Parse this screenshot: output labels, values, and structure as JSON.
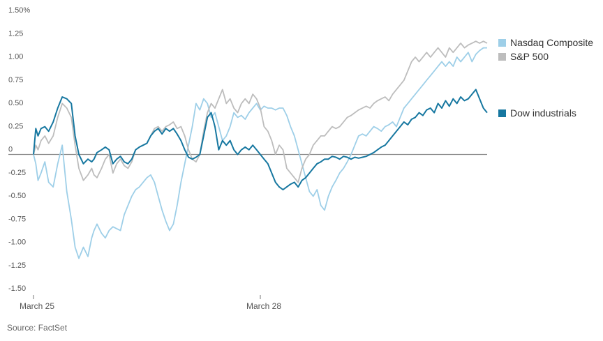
{
  "chart_data": {
    "type": "line",
    "y_tick_labels": [
      "1.50%",
      "1.25",
      "1.00",
      "0.75",
      "0.50",
      "0.25",
      "0",
      "-0.25",
      "-0.50",
      "-0.75",
      "-1.00",
      "-1.25",
      "-1.50"
    ],
    "y_tick_values": [
      1.5,
      1.25,
      1.0,
      0.75,
      0.5,
      0.25,
      0,
      -0.25,
      -0.5,
      -0.75,
      -1.0,
      -1.25,
      -1.5
    ],
    "ylim": [
      -1.5,
      1.5
    ],
    "x_tick_labels": [
      "March 25",
      "March 28"
    ],
    "x_tick_positions": [
      0,
      3
    ],
    "xlim": [
      0,
      6
    ],
    "grid": false,
    "legend_position": "right",
    "source": "Source: FactSet",
    "series": [
      {
        "name": "Nasdaq Composite",
        "color": "#9ecfe8",
        "x": [
          0,
          0.03,
          0.06,
          0.1,
          0.15,
          0.2,
          0.26,
          0.32,
          0.38,
          0.44,
          0.5,
          0.55,
          0.6,
          0.66,
          0.72,
          0.77,
          0.8,
          0.84,
          0.9,
          0.95,
          1.0,
          1.05,
          1.1,
          1.15,
          1.2,
          1.25,
          1.3,
          1.35,
          1.4,
          1.45,
          1.5,
          1.55,
          1.6,
          1.65,
          1.7,
          1.75,
          1.8,
          1.85,
          1.9,
          1.95,
          2.0,
          2.05,
          2.1,
          2.15,
          2.2,
          2.25,
          2.3,
          2.35,
          2.4,
          2.45,
          2.5,
          2.55,
          2.6,
          2.65,
          2.7,
          2.75,
          2.8,
          2.85,
          2.9,
          2.95,
          3.0,
          3.05,
          3.1,
          3.15,
          3.2,
          3.25,
          3.3,
          3.35,
          3.4,
          3.45,
          3.5,
          3.55,
          3.6,
          3.65,
          3.7,
          3.75,
          3.8,
          3.85,
          3.9,
          3.95,
          4.0,
          4.05,
          4.1,
          4.15,
          4.2,
          4.25,
          4.3,
          4.35,
          4.4,
          4.45,
          4.5,
          4.55,
          4.6,
          4.65,
          4.7,
          4.75,
          4.8,
          4.85,
          4.9,
          4.95,
          5.0,
          5.05,
          5.1,
          5.15,
          5.2,
          5.25,
          5.3,
          5.35,
          5.4,
          5.45,
          5.5,
          5.55,
          5.6,
          5.65,
          5.7,
          5.75,
          5.8,
          5.85,
          5.9,
          5.95,
          6.0
        ],
        "values": [
          0.0,
          -0.1,
          -0.28,
          -0.2,
          -0.08,
          -0.3,
          -0.35,
          -0.1,
          0.1,
          -0.4,
          -0.7,
          -1.0,
          -1.12,
          -1.0,
          -1.1,
          -0.9,
          -0.82,
          -0.75,
          -0.85,
          -0.9,
          -0.82,
          -0.78,
          -0.8,
          -0.82,
          -0.65,
          -0.55,
          -0.45,
          -0.38,
          -0.35,
          -0.3,
          -0.25,
          -0.22,
          -0.3,
          -0.45,
          -0.6,
          -0.72,
          -0.82,
          -0.75,
          -0.55,
          -0.3,
          -0.1,
          0.1,
          0.3,
          0.55,
          0.48,
          0.6,
          0.55,
          0.4,
          0.45,
          0.3,
          0.15,
          0.2,
          0.3,
          0.45,
          0.4,
          0.42,
          0.38,
          0.45,
          0.5,
          0.55,
          0.48,
          0.52,
          0.5,
          0.5,
          0.48,
          0.5,
          0.5,
          0.42,
          0.3,
          0.2,
          0.05,
          -0.1,
          -0.25,
          -0.4,
          -0.45,
          -0.38,
          -0.55,
          -0.6,
          -0.45,
          -0.35,
          -0.28,
          -0.2,
          -0.15,
          -0.08,
          0.0,
          0.1,
          0.2,
          0.22,
          0.2,
          0.25,
          0.3,
          0.28,
          0.25,
          0.3,
          0.32,
          0.35,
          0.3,
          0.4,
          0.5,
          0.55,
          0.6,
          0.65,
          0.7,
          0.75,
          0.8,
          0.85,
          0.9,
          0.95,
          1.0,
          0.95,
          1.0,
          0.95,
          1.05,
          1.0,
          1.05,
          1.1,
          1.0,
          1.08,
          1.12,
          1.15,
          1.15
        ]
      },
      {
        "name": "S&P 500",
        "color": "#bdbdbd",
        "x": [
          0,
          0.03,
          0.06,
          0.1,
          0.15,
          0.2,
          0.26,
          0.32,
          0.38,
          0.44,
          0.5,
          0.55,
          0.6,
          0.66,
          0.72,
          0.77,
          0.8,
          0.84,
          0.9,
          0.95,
          1.0,
          1.05,
          1.1,
          1.15,
          1.2,
          1.25,
          1.3,
          1.35,
          1.4,
          1.45,
          1.5,
          1.55,
          1.6,
          1.65,
          1.7,
          1.75,
          1.8,
          1.85,
          1.9,
          1.95,
          2.0,
          2.05,
          2.1,
          2.15,
          2.2,
          2.25,
          2.3,
          2.35,
          2.4,
          2.45,
          2.5,
          2.55,
          2.6,
          2.65,
          2.7,
          2.75,
          2.8,
          2.85,
          2.9,
          2.95,
          3.0,
          3.05,
          3.1,
          3.15,
          3.2,
          3.25,
          3.3,
          3.35,
          3.4,
          3.45,
          3.5,
          3.55,
          3.6,
          3.65,
          3.7,
          3.75,
          3.8,
          3.85,
          3.9,
          3.95,
          4.0,
          4.05,
          4.1,
          4.15,
          4.2,
          4.25,
          4.3,
          4.35,
          4.4,
          4.45,
          4.5,
          4.55,
          4.6,
          4.65,
          4.7,
          4.75,
          4.8,
          4.85,
          4.9,
          4.95,
          5.0,
          5.05,
          5.1,
          5.15,
          5.2,
          5.25,
          5.3,
          5.35,
          5.4,
          5.45,
          5.5,
          5.55,
          5.6,
          5.65,
          5.7,
          5.75,
          5.8,
          5.85,
          5.9,
          5.95,
          6.0
        ],
        "values": [
          0.0,
          0.1,
          0.05,
          0.15,
          0.2,
          0.12,
          0.2,
          0.4,
          0.55,
          0.5,
          0.4,
          0.1,
          -0.15,
          -0.28,
          -0.22,
          -0.15,
          -0.22,
          -0.25,
          -0.15,
          -0.05,
          0.0,
          -0.2,
          -0.1,
          -0.05,
          -0.12,
          -0.15,
          -0.08,
          0.05,
          0.08,
          0.1,
          0.12,
          0.2,
          0.28,
          0.3,
          0.25,
          0.3,
          0.32,
          0.35,
          0.28,
          0.3,
          0.2,
          0.05,
          -0.05,
          -0.08,
          0.0,
          0.25,
          0.45,
          0.55,
          0.5,
          0.6,
          0.7,
          0.55,
          0.6,
          0.5,
          0.45,
          0.55,
          0.6,
          0.55,
          0.65,
          0.6,
          0.5,
          0.3,
          0.25,
          0.15,
          0.0,
          0.1,
          0.05,
          -0.15,
          -0.2,
          -0.25,
          -0.3,
          -0.15,
          -0.05,
          0.0,
          0.1,
          0.15,
          0.2,
          0.2,
          0.25,
          0.3,
          0.28,
          0.3,
          0.35,
          0.4,
          0.42,
          0.45,
          0.48,
          0.5,
          0.52,
          0.5,
          0.55,
          0.58,
          0.6,
          0.62,
          0.58,
          0.65,
          0.7,
          0.75,
          0.8,
          0.9,
          1.0,
          1.05,
          1.0,
          1.05,
          1.1,
          1.05,
          1.1,
          1.15,
          1.1,
          1.05,
          1.15,
          1.1,
          1.15,
          1.2,
          1.15,
          1.18,
          1.2,
          1.22,
          1.2,
          1.22,
          1.2
        ]
      },
      {
        "name": "Dow industrials",
        "color": "#1677a0",
        "x": [
          0,
          0.03,
          0.06,
          0.1,
          0.15,
          0.2,
          0.26,
          0.32,
          0.38,
          0.44,
          0.5,
          0.55,
          0.6,
          0.66,
          0.72,
          0.77,
          0.8,
          0.84,
          0.9,
          0.95,
          1.0,
          1.05,
          1.1,
          1.15,
          1.2,
          1.25,
          1.3,
          1.35,
          1.4,
          1.45,
          1.5,
          1.55,
          1.6,
          1.65,
          1.7,
          1.75,
          1.8,
          1.85,
          1.9,
          1.95,
          2.0,
          2.05,
          2.1,
          2.15,
          2.2,
          2.25,
          2.3,
          2.35,
          2.4,
          2.45,
          2.5,
          2.55,
          2.6,
          2.65,
          2.7,
          2.75,
          2.8,
          2.85,
          2.9,
          2.95,
          3.0,
          3.05,
          3.1,
          3.15,
          3.2,
          3.25,
          3.3,
          3.35,
          3.4,
          3.45,
          3.5,
          3.55,
          3.6,
          3.65,
          3.7,
          3.75,
          3.8,
          3.85,
          3.9,
          3.95,
          4.0,
          4.05,
          4.1,
          4.15,
          4.2,
          4.25,
          4.3,
          4.35,
          4.4,
          4.45,
          4.5,
          4.55,
          4.6,
          4.65,
          4.7,
          4.75,
          4.8,
          4.85,
          4.9,
          4.95,
          5.0,
          5.05,
          5.1,
          5.15,
          5.2,
          5.25,
          5.3,
          5.35,
          5.4,
          5.45,
          5.5,
          5.55,
          5.6,
          5.65,
          5.7,
          5.75,
          5.8,
          5.85,
          5.9,
          5.95,
          6.0
        ],
        "values": [
          0.0,
          0.28,
          0.2,
          0.28,
          0.3,
          0.25,
          0.35,
          0.5,
          0.62,
          0.6,
          0.55,
          0.2,
          0.0,
          -0.1,
          -0.05,
          -0.08,
          -0.05,
          0.02,
          0.05,
          0.08,
          0.05,
          -0.1,
          -0.05,
          -0.02,
          -0.08,
          -0.1,
          -0.05,
          0.05,
          0.08,
          0.1,
          0.12,
          0.2,
          0.25,
          0.28,
          0.22,
          0.28,
          0.25,
          0.28,
          0.22,
          0.15,
          0.05,
          -0.03,
          -0.05,
          -0.03,
          0.0,
          0.2,
          0.4,
          0.45,
          0.3,
          0.05,
          0.15,
          0.1,
          0.15,
          0.05,
          0.0,
          0.05,
          0.08,
          0.05,
          0.1,
          0.05,
          0.0,
          -0.05,
          -0.1,
          -0.2,
          -0.3,
          -0.35,
          -0.38,
          -0.35,
          -0.32,
          -0.3,
          -0.35,
          -0.28,
          -0.25,
          -0.2,
          -0.15,
          -0.1,
          -0.08,
          -0.05,
          -0.05,
          -0.02,
          -0.03,
          -0.05,
          -0.02,
          -0.03,
          -0.05,
          -0.03,
          -0.04,
          -0.03,
          -0.02,
          0.0,
          0.02,
          0.05,
          0.08,
          0.1,
          0.15,
          0.2,
          0.25,
          0.3,
          0.35,
          0.32,
          0.38,
          0.4,
          0.45,
          0.42,
          0.48,
          0.5,
          0.45,
          0.55,
          0.5,
          0.58,
          0.52,
          0.6,
          0.55,
          0.62,
          0.58,
          0.6,
          0.65,
          0.7,
          0.6,
          0.5,
          0.45
        ]
      }
    ]
  }
}
